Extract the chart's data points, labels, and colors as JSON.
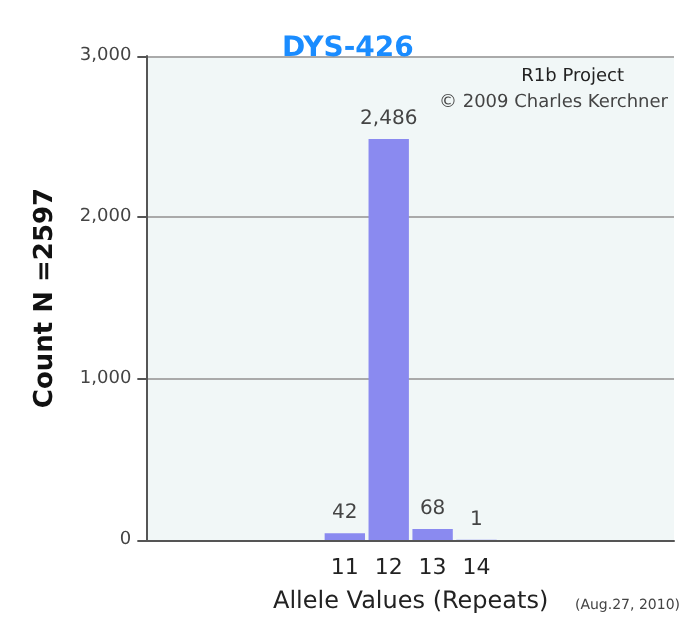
{
  "chart_data": {
    "type": "bar",
    "title": "DYS-426",
    "xlabel": "Allele Values (Repeats)",
    "ylabel": "Count N =2597",
    "categories": [
      null,
      null,
      null,
      null,
      "11",
      "12",
      "13",
      "14",
      null,
      null,
      null,
      null
    ],
    "values": [
      null,
      null,
      null,
      null,
      42,
      2486,
      68,
      1,
      null,
      null,
      null,
      null
    ],
    "color": "#8a8af0",
    "ylim": [
      0,
      3000
    ],
    "yticks": [
      {
        "value": 0,
        "label": "0"
      },
      {
        "value": 1000,
        "label": "1,000"
      },
      {
        "value": 2000,
        "label": "2,000"
      },
      {
        "value": 3000,
        "label": "3,000"
      }
    ],
    "grid": "y",
    "value_labels": [
      null,
      null,
      null,
      null,
      "42",
      "2,486",
      "68",
      "1",
      null,
      null,
      null,
      null
    ],
    "annotations": [
      "R1b Project",
      "© 2009 Charles Kerchner",
      "(Aug.27, 2010)"
    ]
  }
}
